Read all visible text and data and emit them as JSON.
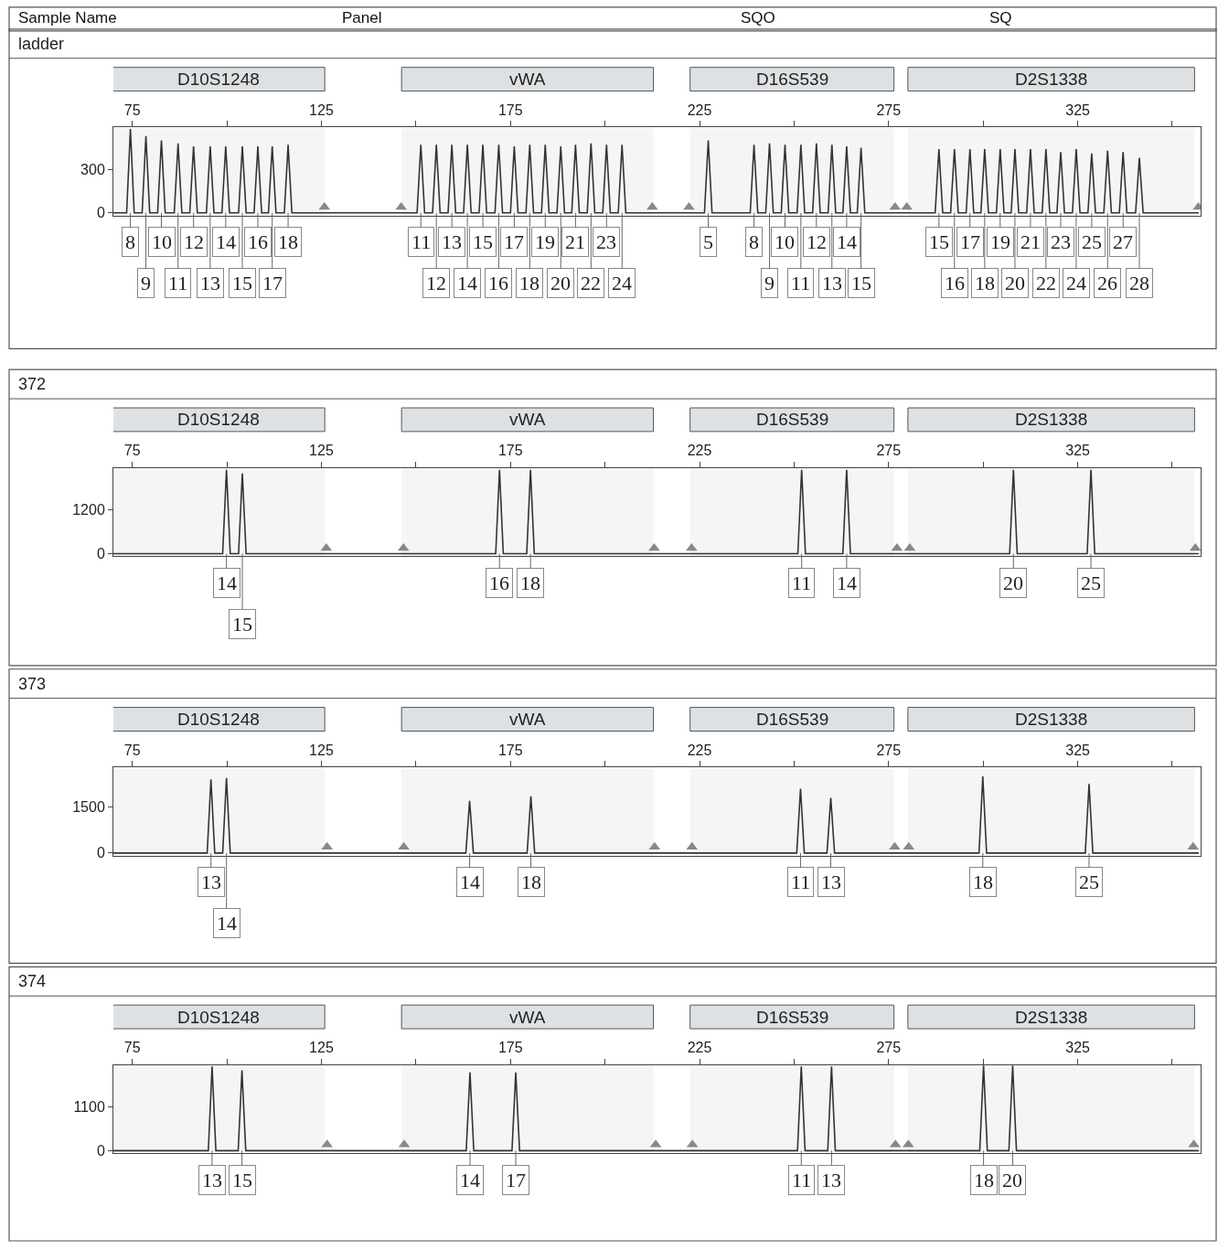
{
  "chart_data": [
    {
      "type": "line",
      "title": "ladder",
      "annotations": [
        "Sample Name",
        "Panel",
        "SQO",
        "SQ",
        {
          "text": "8",
          "x": 74.5,
          "y": 0
        },
        {
          "text": "9",
          "x": 78.6,
          "y": 0
        },
        {
          "text": "10",
          "x": 82.7,
          "y": 0
        },
        {
          "text": "11",
          "x": 87.1,
          "y": 0
        },
        {
          "text": "12",
          "x": 91.2,
          "y": 0
        },
        {
          "text": "13",
          "x": 95.6,
          "y": 0
        },
        {
          "text": "14",
          "x": 99.7,
          "y": 0
        },
        {
          "text": "15",
          "x": 104.1,
          "y": 0
        },
        {
          "text": "16",
          "x": 108.2,
          "y": 0
        },
        {
          "text": "17",
          "x": 112.0,
          "y": 0
        },
        {
          "text": "18",
          "x": 116.2,
          "y": 0
        },
        {
          "text": "11",
          "x": 151.3,
          "y": 0
        },
        {
          "text": "12",
          "x": 155.4,
          "y": 0
        },
        {
          "text": "13",
          "x": 159.5,
          "y": 0
        },
        {
          "text": "14",
          "x": 163.6,
          "y": 0
        },
        {
          "text": "15",
          "x": 167.7,
          "y": 0
        },
        {
          "text": "16",
          "x": 171.9,
          "y": 0
        },
        {
          "text": "17",
          "x": 176.0,
          "y": 0
        },
        {
          "text": "18",
          "x": 180.1,
          "y": 0
        },
        {
          "text": "19",
          "x": 184.2,
          "y": 0
        },
        {
          "text": "20",
          "x": 188.3,
          "y": 0
        },
        {
          "text": "21",
          "x": 192.2,
          "y": 0
        },
        {
          "text": "22",
          "x": 196.3,
          "y": 0
        },
        {
          "text": "23",
          "x": 200.4,
          "y": 0
        },
        {
          "text": "24",
          "x": 204.5,
          "y": 0
        },
        {
          "text": "5",
          "x": 227.3,
          "y": 0
        },
        {
          "text": "8",
          "x": 239.4,
          "y": 0
        },
        {
          "text": "9",
          "x": 243.5,
          "y": 0
        },
        {
          "text": "10",
          "x": 247.6,
          "y": 0
        },
        {
          "text": "11",
          "x": 251.8,
          "y": 0
        },
        {
          "text": "12",
          "x": 255.9,
          "y": 0
        },
        {
          "text": "13",
          "x": 260.0,
          "y": 0
        },
        {
          "text": "14",
          "x": 263.9,
          "y": 0
        },
        {
          "text": "15",
          "x": 267.7,
          "y": 0
        },
        {
          "text": "15",
          "x": 288.3,
          "y": 0
        },
        {
          "text": "16",
          "x": 292.4,
          "y": 0
        },
        {
          "text": "17",
          "x": 296.5,
          "y": 0
        },
        {
          "text": "18",
          "x": 300.4,
          "y": 0
        },
        {
          "text": "19",
          "x": 304.5,
          "y": 0
        },
        {
          "text": "20",
          "x": 308.4,
          "y": 0
        },
        {
          "text": "21",
          "x": 312.5,
          "y": 0
        },
        {
          "text": "22",
          "x": 316.6,
          "y": 0
        },
        {
          "text": "23",
          "x": 320.5,
          "y": 0
        },
        {
          "text": "24",
          "x": 324.6,
          "y": 0
        },
        {
          "text": "25",
          "x": 328.7,
          "y": 0
        },
        {
          "text": "26",
          "x": 332.9,
          "y": 0
        },
        {
          "text": "27",
          "x": 337.0,
          "y": 0
        },
        {
          "text": "28",
          "x": 341.3,
          "y": 0
        }
      ],
      "series": [
        {
          "color": "#333333",
          "x": [
            70,
            73.5,
            74.5,
            75.5,
            77.6,
            78.6,
            79.6,
            81.7,
            82.7,
            83.7,
            86.1,
            87.1,
            88.1,
            90.2,
            91.2,
            92.2,
            94.6,
            95.6,
            96.6,
            98.7,
            99.7,
            100.7,
            103.1,
            104.1,
            105.1,
            107.2,
            108.2,
            109.2,
            111,
            112,
            113,
            115.2,
            116.2,
            117.2,
            150.3,
            151.3,
            152.3,
            154.4,
            155.4,
            156.4,
            158.5,
            159.5,
            160.5,
            162.6,
            163.6,
            164.6,
            166.7,
            167.7,
            168.7,
            170.9,
            171.9,
            172.9,
            175,
            176,
            177,
            179.1,
            180.1,
            181.1,
            183.2,
            184.2,
            185.2,
            187.3,
            188.3,
            189.3,
            191.2,
            192.2,
            193.2,
            195.3,
            196.3,
            197.3,
            199.4,
            200.4,
            201.4,
            203.5,
            204.5,
            205.5,
            226.3,
            227.3,
            228.3,
            238.4,
            239.4,
            240.4,
            242.5,
            243.5,
            244.5,
            246.6,
            247.6,
            248.6,
            250.8,
            251.8,
            252.8,
            254.9,
            255.9,
            256.9,
            259,
            260,
            261,
            262.9,
            263.9,
            264.9,
            266.7,
            267.7,
            268.7,
            287.3,
            288.3,
            289.3,
            291.4,
            292.4,
            293.4,
            295.5,
            296.5,
            297.5,
            299.4,
            300.4,
            301.4,
            303.5,
            304.5,
            305.5,
            307.4,
            308.4,
            309.4,
            311.5,
            312.5,
            313.5,
            315.6,
            316.6,
            317.6,
            319.5,
            320.5,
            321.5,
            323.6,
            324.6,
            325.6,
            327.7,
            328.7,
            329.7,
            331.9,
            332.9,
            333.9,
            336,
            337,
            338,
            340.3,
            341.3,
            342.3,
            357
          ],
          "values": [
            0,
            0,
            580,
            0,
            0,
            530,
            0,
            0,
            500,
            0,
            0,
            480,
            0,
            0,
            460,
            0,
            0,
            460,
            0,
            0,
            460,
            0,
            0,
            460,
            0,
            0,
            460,
            0,
            0,
            460,
            0,
            0,
            470,
            0,
            0,
            470,
            0,
            0,
            470,
            0,
            0,
            470,
            0,
            0,
            470,
            0,
            0,
            470,
            0,
            0,
            470,
            0,
            0,
            460,
            0,
            0,
            470,
            0,
            0,
            470,
            0,
            0,
            460,
            0,
            0,
            470,
            0,
            0,
            480,
            0,
            0,
            470,
            0,
            0,
            470,
            0,
            0,
            500,
            0,
            0,
            470,
            0,
            0,
            480,
            0,
            0,
            470,
            0,
            0,
            470,
            0,
            0,
            480,
            0,
            0,
            470,
            0,
            0,
            460,
            0,
            0,
            450,
            0,
            0,
            440,
            0,
            0,
            440,
            0,
            0,
            440,
            0,
            0,
            440,
            0,
            0,
            440,
            0,
            0,
            440,
            0,
            0,
            440,
            0,
            0,
            440,
            0,
            0,
            420,
            0,
            0,
            440,
            0,
            0,
            410,
            0,
            0,
            430,
            0,
            0,
            420,
            0,
            0,
            380,
            0,
            0
          ]
        },
        {
          "type": "scatter",
          "marker": "triangle",
          "color": "#888888",
          "x": [
            125.8,
            146.1,
            212.5,
            222.2,
            276.7,
            279.8,
            356.9
          ],
          "values": [
            40,
            40,
            40,
            40,
            40,
            40,
            40
          ]
        }
      ],
      "bands": [
        {
          "axis": "x",
          "from": 69.7,
          "to": 125.9,
          "label": "D10S1248",
          "color": "#dde1e4"
        },
        {
          "axis": "x",
          "from": 146.2,
          "to": 212.8,
          "label": "vWA",
          "color": "#dde1e4"
        },
        {
          "axis": "x",
          "from": 222.5,
          "to": 276.4,
          "label": "D16S539",
          "color": "#dde1e4"
        },
        {
          "axis": "x",
          "from": 280.1,
          "to": 355.9,
          "label": "D2S1338",
          "color": "#dde1e4"
        }
      ],
      "xlim": [
        70,
        357.5
      ],
      "xticks": [
        75,
        {
          "value": 100,
          "label": null
        },
        125,
        {
          "value": 150,
          "label": null
        },
        175,
        {
          "value": 200,
          "label": null
        },
        225,
        {
          "value": 250,
          "label": null
        },
        275,
        {
          "value": 300,
          "label": null
        },
        325,
        {
          "value": 350,
          "label": null
        }
      ],
      "ylim": [
        -20,
        590
      ],
      "yticks": [
        0,
        300
      ]
    },
    {
      "type": "line",
      "title": "372",
      "annotations": [
        {
          "text": "14",
          "x": 99.9,
          "y": 0
        },
        {
          "text": "15",
          "x": 104.1,
          "y": 0
        },
        {
          "text": "16",
          "x": 172.1,
          "y": 0
        },
        {
          "text": "18",
          "x": 180.3,
          "y": 0
        },
        {
          "text": "11",
          "x": 252.0,
          "y": 0
        },
        {
          "text": "14",
          "x": 263.9,
          "y": 0
        },
        {
          "text": "20",
          "x": 308.0,
          "y": 0
        },
        {
          "text": "25",
          "x": 328.5,
          "y": 0
        }
      ],
      "series": [
        {
          "color": "#333333",
          "x": [
            70,
            98.9,
            99.9,
            100.9,
            103.1,
            104.1,
            105.1,
            171.1,
            172.1,
            173.1,
            179.3,
            180.3,
            181.3,
            251,
            252,
            253,
            262.9,
            263.9,
            264.9,
            307,
            308,
            309,
            327.5,
            328.5,
            329.5,
            357
          ],
          "values": [
            0,
            0,
            2280,
            0,
            0,
            2180,
            0,
            0,
            2280,
            0,
            0,
            2280,
            0,
            0,
            2280,
            0,
            0,
            2280,
            0,
            0,
            2280,
            0,
            0,
            2280,
            0,
            0
          ]
        },
        {
          "type": "scatter",
          "marker": "triangle",
          "color": "#888888",
          "x": [
            126.3,
            146.7,
            213.0,
            222.9,
            277.2,
            280.6,
            356.1
          ],
          "values": [
            150,
            150,
            150,
            150,
            150,
            150,
            150
          ]
        }
      ],
      "bands": [
        {
          "axis": "x",
          "from": 69.7,
          "to": 125.9,
          "label": "D10S1248",
          "color": "#dde1e4"
        },
        {
          "axis": "x",
          "from": 146.2,
          "to": 212.8,
          "label": "vWA",
          "color": "#dde1e4"
        },
        {
          "axis": "x",
          "from": 222.5,
          "to": 276.4,
          "label": "D16S539",
          "color": "#dde1e4"
        },
        {
          "axis": "x",
          "from": 280.1,
          "to": 355.9,
          "label": "D2S1338",
          "color": "#dde1e4"
        }
      ],
      "xlim": [
        70,
        357.5
      ],
      "xticks": [
        75,
        {
          "value": 100,
          "label": null
        },
        125,
        {
          "value": 150,
          "label": null
        },
        175,
        {
          "value": 200,
          "label": null
        },
        225,
        {
          "value": 250,
          "label": null
        },
        275,
        {
          "value": 300,
          "label": null
        },
        325,
        {
          "value": 350,
          "label": null
        }
      ],
      "ylim": [
        -70,
        2330
      ],
      "yticks": [
        0,
        1200
      ]
    },
    {
      "type": "line",
      "title": "373",
      "annotations": [
        {
          "text": "13",
          "x": 95.8,
          "y": 0
        },
        {
          "text": "14",
          "x": 99.9,
          "y": 0
        },
        {
          "text": "14",
          "x": 164.2,
          "y": 0
        },
        {
          "text": "18",
          "x": 180.4,
          "y": 0
        },
        {
          "text": "11",
          "x": 251.7,
          "y": 0
        },
        {
          "text": "13",
          "x": 259.7,
          "y": 0
        },
        {
          "text": "18",
          "x": 299.9,
          "y": 0
        },
        {
          "text": "25",
          "x": 328.0,
          "y": 0
        }
      ],
      "series": [
        {
          "color": "#333333",
          "x": [
            70,
            94.8,
            95.8,
            96.8,
            98.9,
            99.9,
            100.9,
            163.2,
            164.2,
            165.2,
            179.4,
            180.4,
            181.4,
            250.7,
            251.7,
            252.7,
            258.7,
            259.7,
            260.7,
            298.9,
            299.9,
            300.9,
            327,
            328,
            329,
            357
          ],
          "values": [
            0,
            0,
            2400,
            0,
            0,
            2450,
            0,
            0,
            1700,
            0,
            0,
            1850,
            0,
            0,
            2100,
            0,
            0,
            1800,
            0,
            0,
            2500,
            0,
            0,
            2250,
            0,
            0
          ]
        },
        {
          "type": "scatter",
          "marker": "triangle",
          "color": "#888888",
          "x": [
            126.5,
            146.8,
            213.1,
            223.0,
            276.6,
            280.3,
            355.5
          ],
          "values": [
            200,
            200,
            200,
            200,
            200,
            200,
            200
          ]
        }
      ],
      "bands": [
        {
          "axis": "x",
          "from": 69.7,
          "to": 125.9,
          "label": "D10S1248",
          "color": "#dde1e4"
        },
        {
          "axis": "x",
          "from": 146.2,
          "to": 212.8,
          "label": "vWA",
          "color": "#dde1e4"
        },
        {
          "axis": "x",
          "from": 222.5,
          "to": 276.4,
          "label": "D16S539",
          "color": "#dde1e4"
        },
        {
          "axis": "x",
          "from": 280.1,
          "to": 355.9,
          "label": "D2S1338",
          "color": "#dde1e4"
        }
      ],
      "xlim": [
        70,
        357.5
      ],
      "xticks": [
        75,
        {
          "value": 100,
          "label": null
        },
        125,
        {
          "value": 150,
          "label": null
        },
        175,
        {
          "value": 200,
          "label": null
        },
        225,
        {
          "value": 250,
          "label": null
        },
        275,
        {
          "value": 300,
          "label": null
        },
        325,
        {
          "value": 350,
          "label": null
        }
      ],
      "ylim": [
        -90,
        2790
      ],
      "yticks": [
        0,
        1500
      ]
    },
    {
      "type": "line",
      "title": "374",
      "annotations": [
        {
          "text": "13",
          "x": 96.1,
          "y": 0
        },
        {
          "text": "15",
          "x": 104.0,
          "y": 0
        },
        {
          "text": "14",
          "x": 164.3,
          "y": 0
        },
        {
          "text": "17",
          "x": 176.4,
          "y": 0
        },
        {
          "text": "11",
          "x": 251.9,
          "y": 0
        },
        {
          "text": "13",
          "x": 259.9,
          "y": 0
        },
        {
          "text": "18",
          "x": 300.1,
          "y": 0
        },
        {
          "text": "20",
          "x": 307.8,
          "y": 0
        }
      ],
      "series": [
        {
          "color": "#333333",
          "x": [
            70,
            95.1,
            96.1,
            97.1,
            103,
            104,
            105,
            163.3,
            164.3,
            165.3,
            175.4,
            176.4,
            177.4,
            250.9,
            251.9,
            252.9,
            258.9,
            259.9,
            260.9,
            299.1,
            300.1,
            301.1,
            306.8,
            307.8,
            308.8,
            357
          ],
          "values": [
            0,
            0,
            2100,
            0,
            0,
            2000,
            0,
            0,
            1950,
            0,
            0,
            1950,
            0,
            0,
            2100,
            0,
            0,
            2100,
            0,
            0,
            2120,
            0,
            0,
            2120,
            0,
            0
          ]
        },
        {
          "type": "scatter",
          "marker": "triangle",
          "color": "#888888",
          "x": [
            126.5,
            146.9,
            213.4,
            223.1,
            276.8,
            280.2,
            355.7
          ],
          "values": [
            150,
            150,
            150,
            150,
            150,
            150,
            150
          ]
        }
      ],
      "bands": [
        {
          "axis": "x",
          "from": 69.7,
          "to": 125.9,
          "label": "D10S1248",
          "color": "#dde1e4"
        },
        {
          "axis": "x",
          "from": 146.2,
          "to": 212.8,
          "label": "vWA",
          "color": "#dde1e4"
        },
        {
          "axis": "x",
          "from": 222.5,
          "to": 276.4,
          "label": "D16S539",
          "color": "#dde1e4"
        },
        {
          "axis": "x",
          "from": 280.1,
          "to": 355.9,
          "label": "D2S1338",
          "color": "#dde1e4"
        }
      ],
      "xlim": [
        70,
        357.5
      ],
      "xticks": [
        75,
        {
          "value": 100,
          "label": null
        },
        125,
        {
          "value": 150,
          "label": null
        },
        175,
        {
          "value": 200,
          "label": null
        },
        225,
        {
          "value": 250,
          "label": null
        },
        275,
        {
          "value": 300,
          "label": null
        },
        325,
        {
          "value": 350,
          "label": null
        }
      ],
      "ylim": [
        -70,
        2130
      ],
      "yticks": [
        0,
        1100
      ]
    }
  ]
}
